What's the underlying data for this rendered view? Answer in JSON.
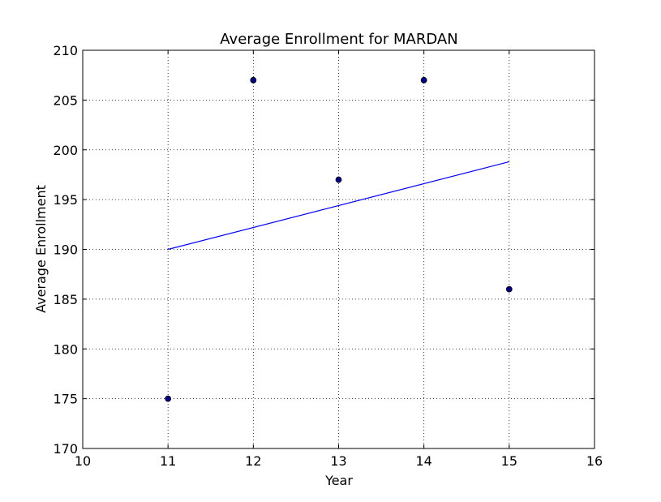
{
  "chart_data": {
    "type": "scatter",
    "title": "Average Enrollment for MARDAN",
    "xlabel": "Year",
    "ylabel": "Average Enrollment",
    "xlim": [
      10,
      16
    ],
    "ylim": [
      170,
      210
    ],
    "x_ticks": [
      10,
      11,
      12,
      13,
      14,
      15,
      16
    ],
    "y_ticks": [
      170,
      175,
      180,
      185,
      190,
      195,
      200,
      205,
      210
    ],
    "grid": true,
    "grid_style": "dotted",
    "legend": "none",
    "series": [
      {
        "kind": "scatter",
        "x": [
          11,
          12,
          13,
          14,
          15
        ],
        "y": [
          175,
          207,
          197,
          207,
          186
        ],
        "color": "#00008b",
        "edge_color": "#000000"
      },
      {
        "kind": "line",
        "x": [
          11,
          15
        ],
        "y": [
          190,
          198.8
        ],
        "color": "#0000ff"
      }
    ]
  }
}
